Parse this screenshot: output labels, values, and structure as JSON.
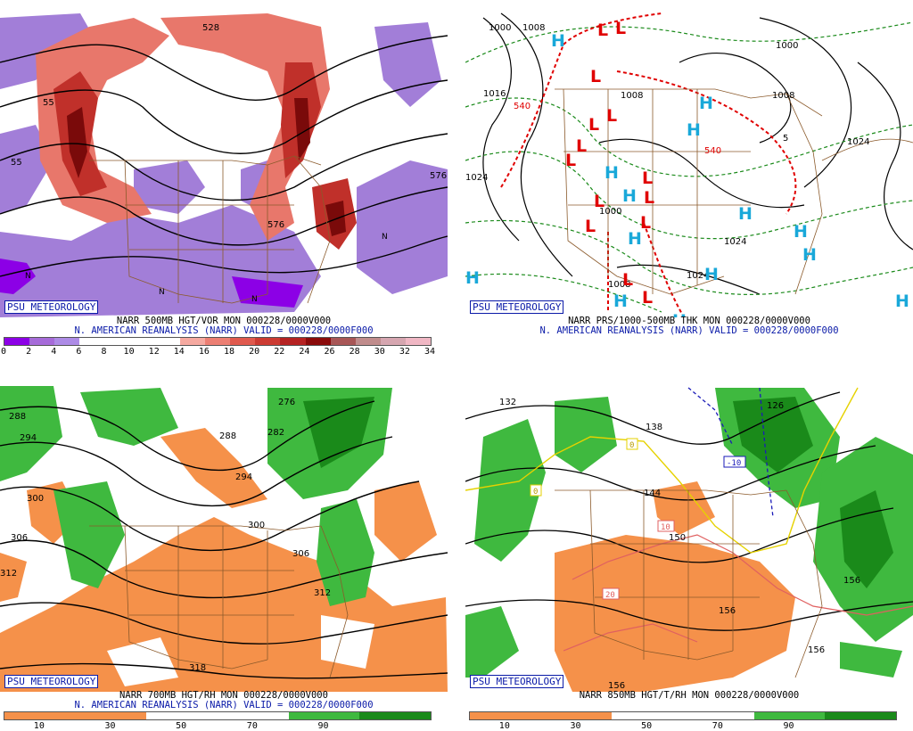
{
  "panels": {
    "p1": {
      "badge": "PSU METEOROLOGY",
      "title_line1": "NARR 500MB HGT/VOR MON 000228/0000V000",
      "title_line2": "N. AMERICAN REANALYSIS (NARR) VALID = 000228/0000F000",
      "colorbar_colors": [
        "#8c00e6",
        "#a66bd9",
        "#ad8be6",
        "#ffffff",
        "#ffffff",
        "#ffffff",
        "#ffffff",
        "#f5a9a0",
        "#ec7f73",
        "#e05a4e",
        "#cc3b33",
        "#b52222",
        "#8a0a0a",
        "#a85656",
        "#c08c8c",
        "#d6a6b0",
        "#f0b7c4"
      ],
      "colorbar_ticks": [
        "0",
        "2",
        "4",
        "6",
        "8",
        "10",
        "12",
        "14",
        "16",
        "18",
        "20",
        "22",
        "24",
        "26",
        "28",
        "30",
        "32",
        "34"
      ],
      "contour_labels": [
        "528",
        "55",
        "55",
        "576",
        "576"
      ],
      "n_marker": "N"
    },
    "p2": {
      "badge": "PSU METEOROLOGY",
      "title_line1": "NARR PRS/1000-500MB THK MON 000228/0000V000",
      "title_line2": "N. AMERICAN REANALYSIS (NARR) VALID = 000228/0000F000",
      "contour_labels": [
        "1000",
        "1008",
        "1016",
        "1024",
        "1000",
        "1008",
        "1024",
        "1024",
        "1008",
        "1000",
        "1008",
        "1024",
        "540",
        "540",
        "5"
      ],
      "high": "H",
      "low": "L"
    },
    "p3": {
      "badge": "PSU METEOROLOGY",
      "title_line1": "NARR 700MB HGT/RH MON 000228/0000V000",
      "title_line2": "N. AMERICAN REANALYSIS (NARR) VALID = 000228/0000F000",
      "colorbar_colors": [
        "#f5914a",
        "#f5914a",
        "#ffffff",
        "#ffffff",
        "#3fb93f",
        "#1a8a1a"
      ],
      "colorbar_ticks": [
        "10",
        "30",
        "50",
        "70",
        "90"
      ],
      "contour_labels": [
        "288",
        "294",
        "300",
        "306",
        "312",
        "276",
        "282",
        "288",
        "294",
        "300",
        "306",
        "312",
        "318"
      ]
    },
    "p4": {
      "badge": "PSU METEOROLOGY",
      "title_line1": "NARR 850MB HGT/T/RH MON 000228/0000V000",
      "colorbar_colors": [
        "#f5914a",
        "#f5914a",
        "#ffffff",
        "#ffffff",
        "#3fb93f",
        "#1a8a1a"
      ],
      "colorbar_ticks": [
        "10",
        "30",
        "50",
        "70",
        "90"
      ],
      "contour_labels": [
        "132",
        "126",
        "138",
        "144",
        "150",
        "156",
        "156",
        "156",
        "156"
      ],
      "temp_labels": [
        "0",
        "0",
        "-10",
        "10",
        "20"
      ]
    }
  }
}
